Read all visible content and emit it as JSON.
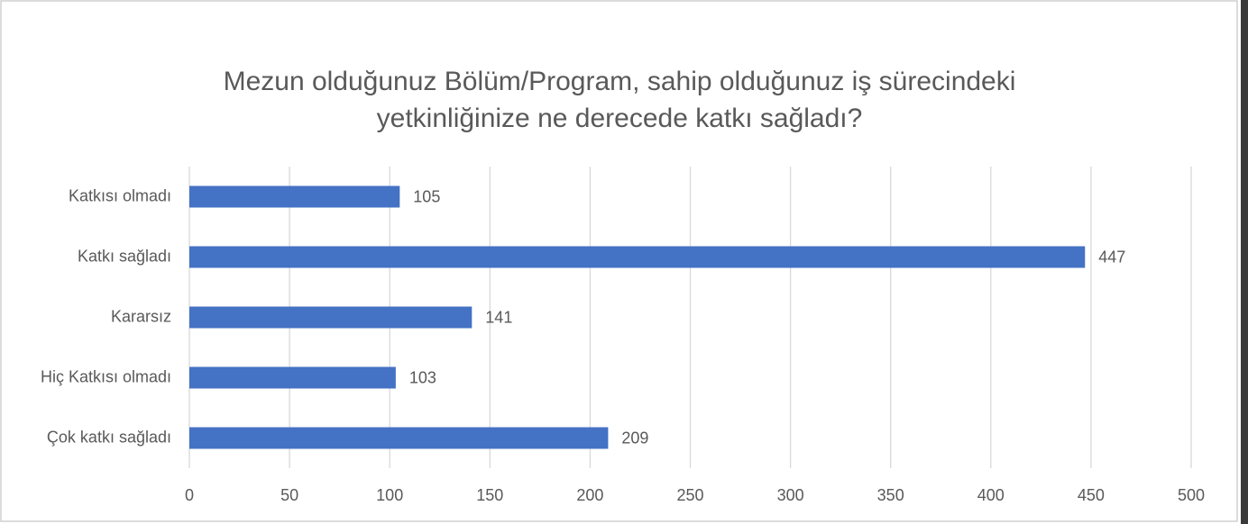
{
  "chart_data": {
    "type": "bar",
    "orientation": "horizontal",
    "title": [
      "Mezun olduğunuz Bölüm/Program, sahip olduğunuz iş sürecindeki",
      "yetkinliğinize ne derecede katkı sağladı?"
    ],
    "categories": [
      "Katkısı olmadı",
      "Katkı sağladı",
      "Kararsız",
      "Hiç Katkısı olmadı",
      "Çok katkı sağladı"
    ],
    "values": [
      105,
      447,
      141,
      103,
      209
    ],
    "color": "#4472c4",
    "xlim": [
      0,
      500
    ],
    "xticks": [
      0,
      50,
      100,
      150,
      200,
      250,
      300,
      350,
      400,
      450,
      500
    ],
    "grid": true
  }
}
